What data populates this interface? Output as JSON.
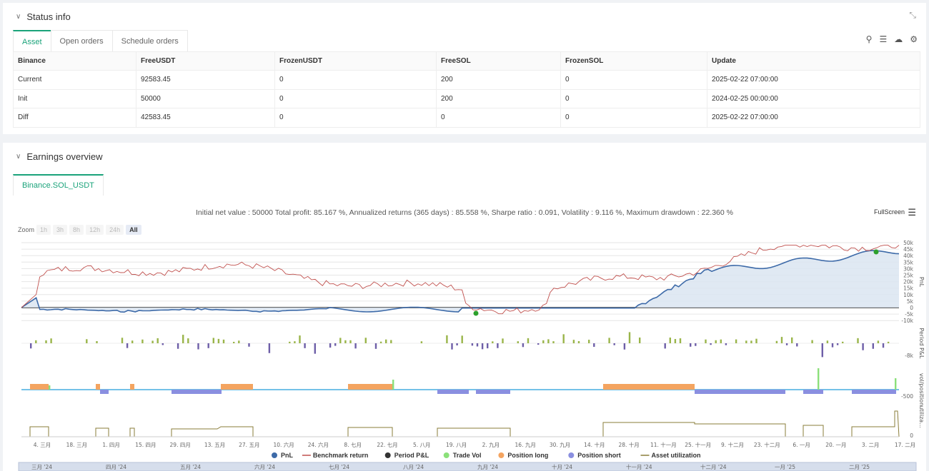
{
  "status": {
    "title": "Status info",
    "tabs": [
      "Asset",
      "Open orders",
      "Schedule orders"
    ],
    "columns": [
      "Binance",
      "FreeUSDT",
      "FrozenUSDT",
      "FreeSOL",
      "FrozenSOL",
      "Update"
    ],
    "rows": [
      {
        "label": "Current",
        "cells": [
          "92583.45",
          "0",
          "200",
          "0",
          "2025-02-22 07:00:00"
        ]
      },
      {
        "label": "Init",
        "cells": [
          "50000",
          "0",
          "200",
          "0",
          "2024-02-25 00:00:00"
        ]
      },
      {
        "label": "Diff",
        "cells": [
          "42583.45",
          "0",
          "0",
          "0",
          "2025-02-22 07:00:00"
        ]
      }
    ]
  },
  "earnings": {
    "title": "Earnings overview",
    "pair_tab": "Binance.SOL_USDT",
    "summary": "Initial net value : 50000 Total profit: 85.167 %, Annualized returns (365 days) : 85.558 %, Sharpe ratio : 0.091, Volatility : 9.116 %, Maximum drawdown : 22.360 %",
    "fullscreen": "FullScreen",
    "zoom_label": "Zoom",
    "zoom_options": [
      "1h",
      "3h",
      "8h",
      "12h",
      "24h",
      "All"
    ],
    "y_ticks": [
      "50k",
      "45k",
      "40k",
      "35k",
      "30k",
      "25k",
      "20k",
      "15k",
      "10k",
      "5k",
      "0",
      "-5k",
      "-10k"
    ],
    "panel_labels": [
      "PnL",
      "Period P&L",
      "vol/position",
      "utiliza..."
    ],
    "pnl_axis_label": "-8k",
    "vol_axis_label": "-500",
    "util_axis_label": "0",
    "x_ticks": [
      "4. 三月",
      "18. 三月",
      "1. 四月",
      "15. 四月",
      "29. 四月",
      "13. 五月",
      "27. 五月",
      "10. 六月",
      "24. 六月",
      "8. 七月",
      "22. 七月",
      "5. 八月",
      "19. 八月",
      "2. 九月",
      "16. 九月",
      "30. 九月",
      "14. 十月",
      "28. 十月",
      "11. 十一月",
      "25. 十一月",
      "9. 十二月",
      "23. 十二月",
      "6. 一月",
      "20. 一月",
      "3. 二月",
      "17. 二月"
    ],
    "nav_ticks": [
      "三月 '24",
      "四月 '24",
      "五月 '24",
      "六月 '24",
      "七月 '24",
      "八月 '24",
      "九月 '24",
      "十月 '24",
      "十一月 '24",
      "十二月 '24",
      "一月 '25",
      "二月 '25"
    ],
    "legend": [
      {
        "name": "PnL",
        "color": "#3d6aa8",
        "shape": "dot"
      },
      {
        "name": "Benchmark return",
        "color": "#c0504d",
        "shape": "line"
      },
      {
        "name": "Period P&L",
        "color": "#333333",
        "shape": "dot"
      },
      {
        "name": "Trade Vol",
        "color": "#8be07a",
        "shape": "dot"
      },
      {
        "name": "Position long",
        "color": "#f4a460",
        "shape": "dot"
      },
      {
        "name": "Position short",
        "color": "#8a8fe0",
        "shape": "dot"
      },
      {
        "name": "Asset utilization",
        "color": "#8a7d3a",
        "shape": "line"
      }
    ]
  }
}
